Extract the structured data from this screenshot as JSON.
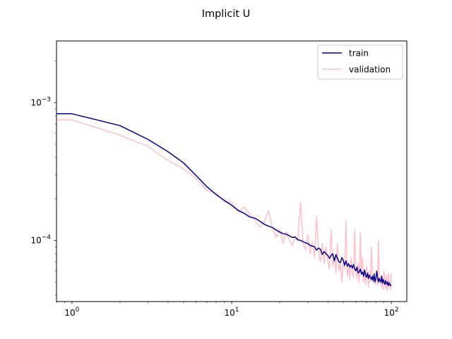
{
  "chart_data": {
    "type": "line",
    "title": "Implicit U",
    "xlabel": "",
    "ylabel": "",
    "xscale": "log",
    "yscale": "log",
    "xlim": [
      0.8,
      125
    ],
    "ylim": [
      3.6e-05,
      0.0028
    ],
    "grid": false,
    "legend_placement": "top-right",
    "x_tick_labels": [
      {
        "base": "10",
        "exp": "0"
      },
      {
        "base": "10",
        "exp": "1"
      },
      {
        "base": "10",
        "exp": "2"
      }
    ],
    "y_tick_labels": [
      {
        "base": "10",
        "exp": "−4"
      },
      {
        "base": "10",
        "exp": "−3"
      }
    ],
    "colors": {
      "train": "#00008b",
      "validation": "#ffc0cb"
    },
    "series": [
      {
        "name": "train",
        "x": [
          0.8,
          1,
          2,
          3,
          4,
          5,
          6,
          7,
          8,
          9,
          10,
          11,
          12,
          13,
          14,
          15,
          16,
          17,
          18,
          19,
          20,
          21,
          22,
          23,
          24,
          25,
          26,
          27,
          28,
          29,
          30,
          31,
          32,
          33,
          34,
          35,
          36,
          37,
          38,
          39,
          40,
          41,
          42,
          43,
          44,
          45,
          46,
          47,
          48,
          49,
          50,
          51,
          52,
          53,
          54,
          55,
          56,
          57,
          58,
          59,
          60,
          61,
          62,
          63,
          64,
          65,
          66,
          67,
          68,
          69,
          70,
          71,
          72,
          73,
          74,
          75,
          76,
          77,
          78,
          79,
          80,
          81,
          82,
          83,
          84,
          85,
          86,
          87,
          88,
          89,
          90,
          91,
          92,
          93,
          94,
          95,
          96,
          97,
          98,
          99,
          100
        ],
        "y": [
          0.00083,
          0.00083,
          0.00068,
          0.00054,
          0.00044,
          0.000365,
          0.000295,
          0.000245,
          0.000215,
          0.000195,
          0.00018,
          0.000165,
          0.000157,
          0.000148,
          0.000145,
          0.000138,
          0.000131,
          0.000127,
          0.000124,
          0.000119,
          0.000115,
          0.000112,
          0.000111,
          0.000108,
          0.000105,
          0.000106,
          0.000101,
          0.0001,
          9.8e-05,
          9.6e-05,
          9.5e-05,
          9.2e-05,
          9.1e-05,
          9e-05,
          8.5e-05,
          8.8e-05,
          8.6e-05,
          7.9e-05,
          8.3e-05,
          8e-05,
          7.8e-05,
          7.4e-05,
          7.8e-05,
          8e-05,
          7.1e-05,
          7.9e-05,
          7.4e-05,
          7e-05,
          6.9e-05,
          7.5e-05,
          7.2e-05,
          6.6e-05,
          7.1e-05,
          6.5e-05,
          6.8e-05,
          6.4e-05,
          6.6e-05,
          6.3e-05,
          6.7e-05,
          6.2e-05,
          6e-05,
          6.4e-05,
          5.8e-05,
          5.9e-05,
          6.2e-05,
          5.7e-05,
          5.9e-05,
          5.5e-05,
          6.1e-05,
          5.6e-05,
          5.4e-05,
          5.8e-05,
          5.3e-05,
          5.6e-05,
          5.4e-05,
          5.2e-05,
          5.5e-05,
          5.1e-05,
          5.7e-05,
          5e-05,
          5.3e-05,
          6e-05,
          5.4e-05,
          5e-05,
          5.3e-05,
          5.1e-05,
          5e-05,
          5.5e-05,
          4.9e-05,
          5.2e-05,
          5e-05,
          4.8e-05,
          5.1e-05,
          4.9e-05,
          4.8e-05,
          5e-05,
          4.7e-05,
          4.9e-05,
          4.8e-05,
          4.7e-05,
          4.7e-05
        ]
      },
      {
        "name": "validation",
        "x": [
          0.8,
          1,
          2,
          3,
          4,
          5,
          6,
          7,
          8,
          9,
          10,
          11,
          12,
          13,
          14,
          15,
          16,
          17,
          18,
          19,
          20,
          21,
          22,
          23,
          24,
          25,
          26,
          27,
          28,
          29,
          30,
          31,
          32,
          33,
          34,
          35,
          36,
          37,
          38,
          39,
          40,
          41,
          42,
          43,
          44,
          45,
          46,
          47,
          48,
          49,
          50,
          51,
          52,
          53,
          54,
          55,
          56,
          57,
          58,
          59,
          60,
          61,
          62,
          63,
          64,
          65,
          66,
          67,
          68,
          69,
          70,
          71,
          72,
          73,
          74,
          75,
          76,
          77,
          78,
          79,
          80,
          81,
          82,
          83,
          84,
          85,
          86,
          87,
          88,
          89,
          90,
          91,
          92,
          93,
          94,
          95,
          96,
          97,
          98,
          99,
          100
        ],
        "y": [
          0.00075,
          0.00075,
          0.00058,
          0.00048,
          0.00038,
          0.00033,
          0.00028,
          0.00023,
          0.00022,
          0.00019,
          0.00019,
          0.00016,
          0.000175,
          0.000155,
          0.00014,
          0.000125,
          0.000135,
          0.000165,
          0.000125,
          0.000105,
          0.00012,
          9.5e-05,
          0.000115,
          0.0001,
          9.2e-05,
          0.000105,
          0.0001,
          0.00019,
          9.5e-05,
          8.5e-05,
          0.00011,
          8e-05,
          9.8e-05,
          7.5e-05,
          0.00015,
          8.5e-05,
          7e-05,
          9.5e-05,
          6.8e-05,
          9e-05,
          7e-05,
          6.2e-05,
          0.00012,
          6.5e-05,
          7.5e-05,
          5.8e-05,
          9.5e-05,
          6e-05,
          6.8e-05,
          5e-05,
          7e-05,
          6.2e-05,
          0.00014,
          5.5e-05,
          6.6e-05,
          5.2e-05,
          7.5e-05,
          5.8e-05,
          5.4e-05,
          0.00012,
          6.2e-05,
          5.2e-05,
          6.8e-05,
          4.9e-05,
          0.000115,
          5.6e-05,
          7.5e-05,
          5e-05,
          5.8e-05,
          4.8e-05,
          6.5e-05,
          5.4e-05,
          4.6e-05,
          6e-05,
          5.1e-05,
          9e-05,
          5.5e-05,
          4.9e-05,
          5.8e-05,
          4.8e-05,
          5.4e-05,
          5.2e-05,
          4.7e-05,
          0.0001,
          5.2e-05,
          4.8e-05,
          5.6e-05,
          4.6e-05,
          5.4e-05,
          4.4e-05,
          6e-05,
          5e-05,
          4.5e-05,
          5.6e-05,
          4.3e-05,
          5.2e-05,
          5.8e-05,
          4.6e-05,
          5.1e-05,
          4.4e-05,
          5.8e-05
        ]
      }
    ]
  }
}
